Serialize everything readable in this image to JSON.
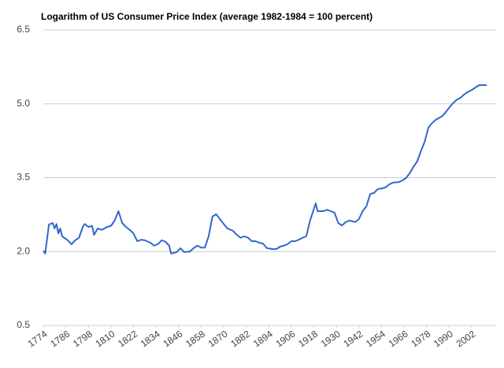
{
  "chart_data": {
    "type": "line",
    "title": "Logarithm of US Consumer Price Index (average 1982-1984 = 100 percent)",
    "x": [
      1774,
      1775,
      1777,
      1779,
      1780,
      1781,
      1782,
      1783,
      1784,
      1787,
      1789,
      1791,
      1793,
      1795,
      1796,
      1798,
      1800,
      1801,
      1803,
      1805,
      1808,
      1810,
      1812,
      1814,
      1816,
      1818,
      1820,
      1822,
      1824,
      1826,
      1828,
      1831,
      1833,
      1835,
      1837,
      1839,
      1841,
      1842,
      1845,
      1847,
      1849,
      1852,
      1854,
      1856,
      1858,
      1860,
      1862,
      1864,
      1866,
      1868,
      1870,
      1872,
      1875,
      1877,
      1879,
      1881,
      1883,
      1885,
      1887,
      1889,
      1891,
      1893,
      1896,
      1898,
      1900,
      1902,
      1904,
      1906,
      1908,
      1910,
      1912,
      1914,
      1916,
      1919,
      1920,
      1923,
      1925,
      1927,
      1929,
      1931,
      1933,
      1935,
      1937,
      1940,
      1942,
      1944,
      1946,
      1948,
      1950,
      1952,
      1954,
      1956,
      1958,
      1960,
      1963,
      1965,
      1967,
      1969,
      1971,
      1973,
      1975,
      1977,
      1979,
      1981,
      1983,
      1986,
      1988,
      1990,
      1992,
      1994,
      1996,
      1998,
      2000,
      2002,
      2004,
      2006,
      2008,
      2010
    ],
    "series": [
      {
        "color": "#3366cc",
        "values": [
          2.02,
          1.96,
          2.55,
          2.58,
          2.47,
          2.56,
          2.37,
          2.47,
          2.31,
          2.23,
          2.15,
          2.23,
          2.28,
          2.5,
          2.56,
          2.5,
          2.52,
          2.34,
          2.47,
          2.44,
          2.5,
          2.52,
          2.63,
          2.82,
          2.58,
          2.5,
          2.44,
          2.37,
          2.21,
          2.24,
          2.23,
          2.18,
          2.12,
          2.15,
          2.23,
          2.2,
          2.12,
          1.96,
          1.99,
          2.07,
          1.99,
          2.0,
          2.07,
          2.12,
          2.08,
          2.08,
          2.31,
          2.71,
          2.76,
          2.66,
          2.56,
          2.47,
          2.42,
          2.34,
          2.28,
          2.31,
          2.28,
          2.21,
          2.21,
          2.18,
          2.16,
          2.07,
          2.05,
          2.05,
          2.1,
          2.12,
          2.15,
          2.21,
          2.21,
          2.24,
          2.28,
          2.31,
          2.63,
          2.98,
          2.82,
          2.82,
          2.85,
          2.82,
          2.79,
          2.58,
          2.53,
          2.6,
          2.63,
          2.6,
          2.66,
          2.82,
          2.92,
          3.17,
          3.19,
          3.27,
          3.28,
          3.3,
          3.36,
          3.4,
          3.41,
          3.44,
          3.49,
          3.59,
          3.72,
          3.83,
          4.04,
          4.23,
          4.52,
          4.61,
          4.68,
          4.74,
          4.82,
          4.92,
          5.01,
          5.08,
          5.12,
          5.19,
          5.24,
          5.28,
          5.33,
          5.38,
          5.38,
          5.38
        ]
      }
    ],
    "xlim": [
      1774,
      2010
    ],
    "xticks": [
      1774,
      1786,
      1798,
      1810,
      1822,
      1834,
      1846,
      1858,
      1870,
      1882,
      1894,
      1906,
      1918,
      1930,
      1942,
      1954,
      1966,
      1978,
      1990,
      2002
    ],
    "ylim": [
      0.5,
      6.5
    ],
    "yticks": [
      0.5,
      {
        "value": 2,
        "label": "2.0"
      },
      3.5,
      {
        "value": 5,
        "label": "5.0"
      },
      6.5
    ],
    "grid": true
  }
}
